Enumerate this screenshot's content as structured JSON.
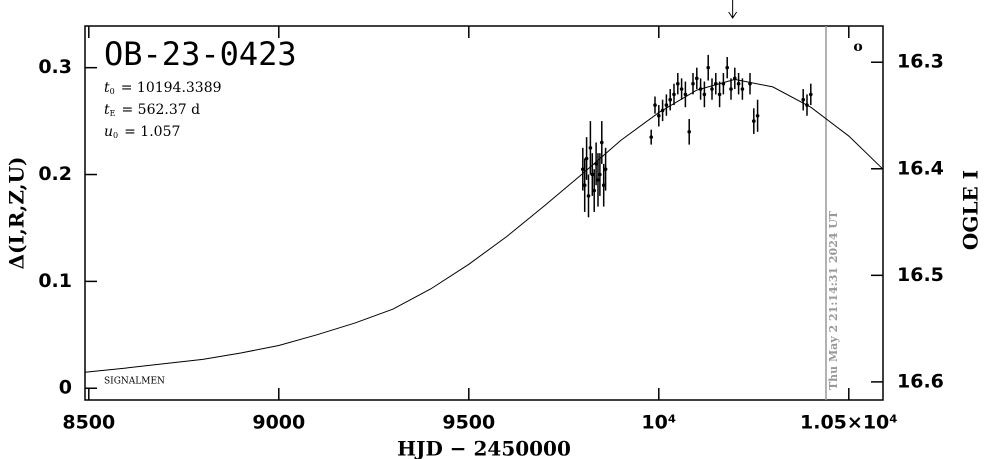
{
  "chart_data": {
    "type": "scatter",
    "title": "OB-23-0423",
    "params": [
      {
        "symbol": "t",
        "sub": "0",
        "text": "= 10194.3389"
      },
      {
        "symbol": "t",
        "sub": "E",
        "text": "= 562.37 d"
      },
      {
        "symbol": "u",
        "sub": "0",
        "text": "= 1.057"
      }
    ],
    "xlabel": "HJD − 2450000",
    "ylabel": "Δ(I,R,Z,U)",
    "y2label": "OGLE I",
    "xlim": [
      8490,
      10590
    ],
    "ylim": [
      -0.011,
      0.339
    ],
    "y2lim": [
      16.617,
      16.266
    ],
    "xticks": [
      8500,
      9000,
      9500,
      {
        "value": 10000,
        "label": "10⁴"
      },
      {
        "value": 10500,
        "label": "1.05×10⁴"
      }
    ],
    "yticks": [
      0,
      0.1,
      0.2,
      0.3
    ],
    "y2ticks": [
      16.3,
      16.4,
      16.5,
      16.6
    ],
    "color": "#000000",
    "points": {
      "x": [
        9800,
        9805,
        9810,
        9815,
        9820,
        9825,
        9830,
        9835,
        9840,
        9845,
        9850,
        9855,
        9860,
        9980,
        9990,
        10000,
        10010,
        10020,
        10030,
        10040,
        10050,
        10060,
        10070,
        10080,
        10090,
        10100,
        10110,
        10120,
        10130,
        10140,
        10150,
        10160,
        10170,
        10180,
        10190,
        10200,
        10210,
        10220,
        10240,
        10250,
        10260,
        10380,
        10390,
        10400
      ],
      "values": [
        0.205,
        0.19,
        0.215,
        0.18,
        0.225,
        0.2,
        0.185,
        0.21,
        0.195,
        0.2,
        0.23,
        0.19,
        0.205,
        0.235,
        0.265,
        0.255,
        0.26,
        0.265,
        0.27,
        0.275,
        0.285,
        0.28,
        0.275,
        0.24,
        0.285,
        0.29,
        0.28,
        0.275,
        0.3,
        0.28,
        0.285,
        0.275,
        0.285,
        0.3,
        0.28,
        0.29,
        0.285,
        0.28,
        0.285,
        0.25,
        0.255,
        0.27,
        0.265,
        0.275
      ],
      "errors": [
        0.02,
        0.025,
        0.02,
        0.02,
        0.025,
        0.02,
        0.02,
        0.02,
        0.025,
        0.02,
        0.02,
        0.02,
        0.02,
        0.007,
        0.008,
        0.01,
        0.01,
        0.01,
        0.01,
        0.01,
        0.01,
        0.01,
        0.012,
        0.012,
        0.01,
        0.01,
        0.01,
        0.012,
        0.012,
        0.01,
        0.01,
        0.012,
        0.01,
        0.01,
        0.01,
        0.01,
        0.01,
        0.01,
        0.01,
        0.012,
        0.015,
        0.01,
        0.01,
        0.01
      ]
    },
    "model": {
      "x": [
        8490,
        8600,
        8700,
        8800,
        8900,
        9000,
        9100,
        9200,
        9300,
        9400,
        9500,
        9600,
        9700,
        9800,
        9900,
        10000,
        10100,
        10200,
        10300,
        10400,
        10500,
        10590
      ],
      "values": [
        0.015,
        0.019,
        0.023,
        0.027,
        0.033,
        0.04,
        0.05,
        0.061,
        0.074,
        0.093,
        0.116,
        0.142,
        0.171,
        0.201,
        0.232,
        0.258,
        0.279,
        0.289,
        0.282,
        0.263,
        0.236,
        0.205
      ]
    },
    "t0_marker": 10194.3389,
    "now": {
      "x": 10440,
      "label": "Thu May  2 21:14:31 2024 UT",
      "color": "#999999"
    },
    "signature": "SIGNALMEN",
    "corner_mark": "o"
  }
}
